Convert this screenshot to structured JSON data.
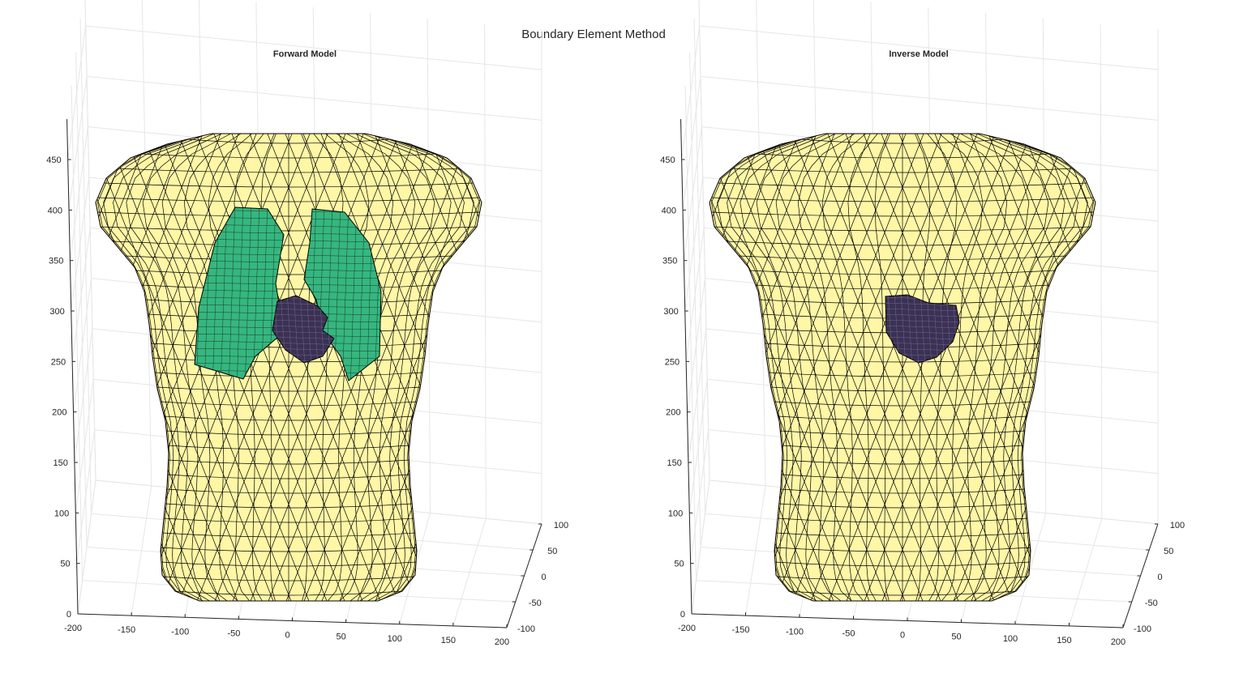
{
  "figure": {
    "title": "Boundary Element Method"
  },
  "chart_data": [
    {
      "type": "surface3d",
      "title": "Forward Model",
      "xlabel": "",
      "ylabel": "",
      "zlabel": "",
      "xlim": [
        -200,
        200
      ],
      "ylim": [
        -100,
        100
      ],
      "zlim": [
        0,
        450
      ],
      "xticks": [
        "-200",
        "-150",
        "-100",
        "-50",
        "0",
        "50",
        "100",
        "150",
        "200"
      ],
      "yticks": [
        "-100",
        "-50",
        "0",
        "50",
        "100"
      ],
      "zticks": [
        "0",
        "50",
        "100",
        "150",
        "200",
        "250",
        "300",
        "350",
        "400",
        "450"
      ],
      "grid": true,
      "surfaces": [
        {
          "name": "torso",
          "color": "#fff7a6",
          "edge": "#000000",
          "z_range": [
            20,
            465
          ]
        },
        {
          "name": "lungs",
          "color": "#35b77f",
          "edge": "#000000",
          "z_range": [
            245,
            405
          ]
        },
        {
          "name": "heart",
          "color": "#3b3153",
          "edge": "#000000",
          "z_range": [
            245,
            315
          ]
        }
      ]
    },
    {
      "type": "surface3d",
      "title": "Inverse Model",
      "xlabel": "",
      "ylabel": "",
      "zlabel": "",
      "xlim": [
        -200,
        200
      ],
      "ylim": [
        -100,
        100
      ],
      "zlim": [
        0,
        450
      ],
      "xticks": [
        "-200",
        "-150",
        "-100",
        "-50",
        "0",
        "50",
        "100",
        "150",
        "200"
      ],
      "yticks": [
        "-100",
        "-50",
        "0",
        "50",
        "100"
      ],
      "zticks": [
        "0",
        "50",
        "100",
        "150",
        "200",
        "250",
        "300",
        "350",
        "400",
        "450"
      ],
      "grid": true,
      "surfaces": [
        {
          "name": "torso",
          "color": "#fff7a6",
          "edge": "#000000",
          "z_range": [
            20,
            465
          ]
        },
        {
          "name": "heart",
          "color": "#3b3153",
          "edge": "#000000",
          "z_range": [
            245,
            315
          ]
        }
      ]
    }
  ]
}
